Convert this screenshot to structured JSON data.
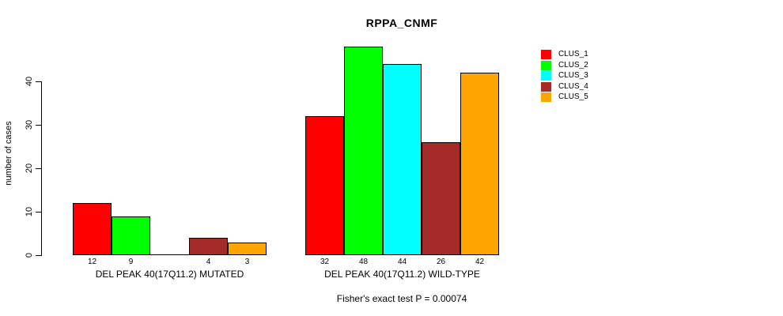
{
  "chart_data": {
    "type": "bar",
    "title": "RPPA_CNMF",
    "ylabel": "number of cases",
    "xlabel": "",
    "subtitle": "Fisher's exact test P = 0.00074",
    "y_ticks": [
      "0",
      "10",
      "20",
      "30",
      "40"
    ],
    "y_tick_values": [
      0,
      10,
      20,
      30,
      40
    ],
    "ylim": [
      0,
      48
    ],
    "grid": false,
    "legend_position": "right",
    "series": [
      {
        "name": "CLUS_1",
        "color": "#FF0000"
      },
      {
        "name": "CLUS_2",
        "color": "#00FF00"
      },
      {
        "name": "CLUS_3",
        "color": "#00FFFF"
      },
      {
        "name": "CLUS_4",
        "color": "#A52A2A"
      },
      {
        "name": "CLUS_5",
        "color": "#FFA500"
      }
    ],
    "groups": [
      {
        "label": "DEL PEAK 40(17Q11.2) MUTATED",
        "values": [
          12,
          9,
          0,
          4,
          3
        ],
        "bar_labels": [
          "12",
          "9",
          "",
          "4",
          "3"
        ]
      },
      {
        "label": "DEL PEAK 40(17Q11.2) WILD-TYPE",
        "values": [
          32,
          48,
          44,
          26,
          42
        ],
        "bar_labels": [
          "32",
          "48",
          "44",
          "26",
          "42"
        ]
      }
    ],
    "axis_color": "#000000",
    "background_color": "#FFFFFF"
  }
}
